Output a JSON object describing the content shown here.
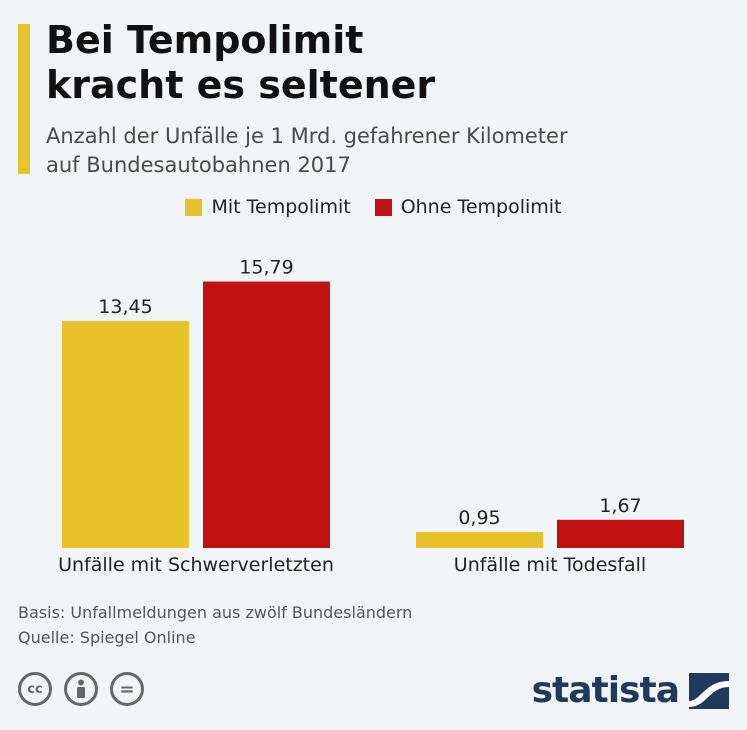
{
  "header": {
    "title_line1": "Bei Tempolimit",
    "title_line2": "kracht es seltener",
    "subtitle_line1": "Anzahl der Unfälle je 1 Mrd. gefahrener Kilometer",
    "subtitle_line2": "auf Bundesautobahnen 2017"
  },
  "colors": {
    "accent": "#e8c22a",
    "series_mit": "#e8c22a",
    "series_ohne": "#c01010",
    "brand": "#1f3a5c"
  },
  "chart_data": {
    "type": "bar",
    "categories": [
      "Unfälle mit Schwerverletzten",
      "Unfälle mit Todesfall"
    ],
    "series": [
      {
        "name": "Mit Tempolimit",
        "values": [
          13.45,
          0.95
        ],
        "labels": [
          "13,45",
          "0,95"
        ]
      },
      {
        "name": "Ohne Tempolimit",
        "values": [
          15.79,
          1.67
        ],
        "labels": [
          "15,79",
          "1,67"
        ]
      }
    ],
    "title": "Bei Tempolimit kracht es seltener",
    "xlabel": "",
    "ylabel": "",
    "ylim": [
      0,
      16
    ],
    "grid": false,
    "legend": "top-center"
  },
  "footer": {
    "basis": "Basis: Unfallmeldungen aus zwölf Bundesländern",
    "quelle": "Quelle: Spiegel Online"
  },
  "license": {
    "icons": [
      "cc-icon",
      "attribution-icon",
      "noderivs-icon"
    ],
    "cc_text": "cc",
    "nd_text": "="
  },
  "brand": {
    "name": "statista"
  }
}
